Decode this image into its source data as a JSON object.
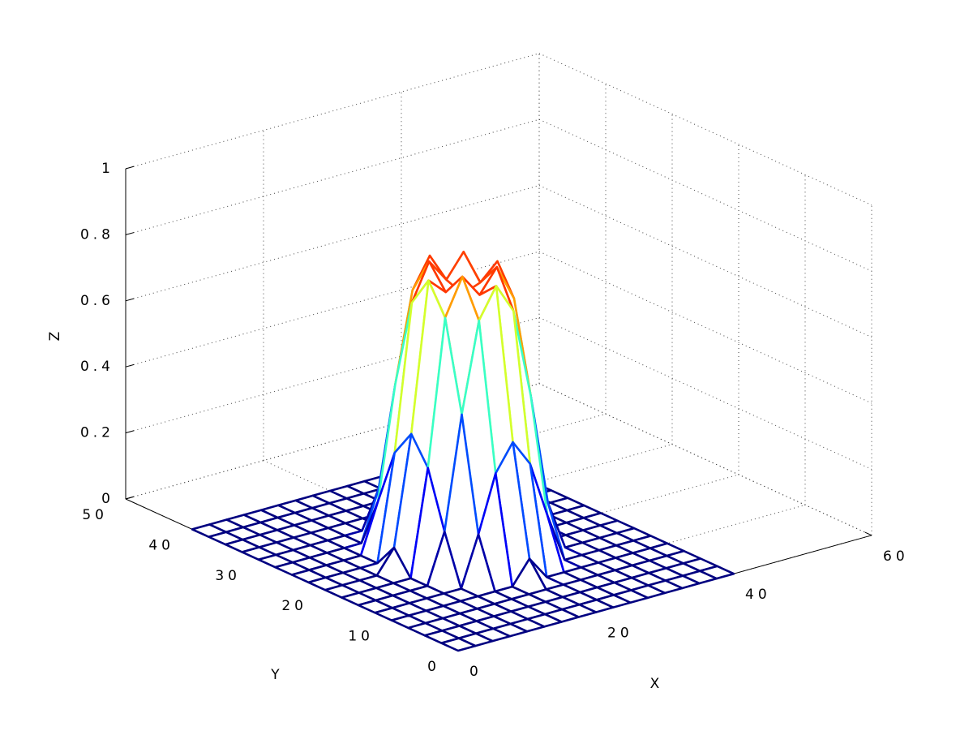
{
  "chart_data": {
    "type": "mesh",
    "xlabel": "X",
    "ylabel": "Y",
    "zlabel": "Z",
    "x": [
      0,
      2.5,
      5,
      7.5,
      10,
      12.5,
      15,
      17.5,
      20,
      22.5,
      25,
      27.5,
      30,
      32.5,
      35,
      37.5,
      40
    ],
    "y": [
      0,
      2.5,
      5,
      7.5,
      10,
      12.5,
      15,
      17.5,
      20,
      22.5,
      25,
      27.5,
      30,
      32.5,
      35,
      37.5,
      40
    ],
    "z": [
      [
        0,
        0,
        0,
        0,
        0,
        0,
        0,
        0,
        0,
        0,
        0,
        0,
        0,
        0,
        0,
        0,
        0
      ],
      [
        0,
        0,
        0,
        0,
        0,
        0,
        0,
        0,
        0,
        0,
        0,
        0,
        0,
        0,
        0,
        0,
        0
      ],
      [
        0,
        0,
        0,
        0,
        0,
        0,
        0,
        0,
        0,
        0,
        0,
        0,
        0,
        0,
        0,
        0,
        0
      ],
      [
        0,
        0,
        0,
        0,
        0,
        0,
        0,
        0,
        0,
        0,
        0,
        0,
        0,
        0,
        0,
        0,
        0
      ],
      [
        0,
        0,
        0,
        0,
        0,
        0,
        0,
        0,
        0.07,
        0,
        0,
        0,
        0,
        0,
        0,
        0,
        0
      ],
      [
        0,
        0,
        0,
        0,
        0,
        0,
        0.15,
        0.32,
        0.4,
        0.32,
        0.15,
        0,
        0,
        0,
        0,
        0,
        0
      ],
      [
        0,
        0,
        0,
        0,
        0,
        0.15,
        0.49,
        0.76,
        0.85,
        0.76,
        0.49,
        0.15,
        0,
        0,
        0,
        0,
        0
      ],
      [
        0,
        0,
        0,
        0,
        0,
        0.32,
        0.76,
        0.87,
        0.8,
        0.87,
        0.76,
        0.32,
        0,
        0,
        0,
        0,
        0
      ],
      [
        0,
        0,
        0,
        0,
        0.07,
        0.4,
        0.85,
        0.8,
        0.78,
        0.8,
        0.85,
        0.4,
        0.07,
        0,
        0,
        0,
        0
      ],
      [
        0,
        0,
        0,
        0,
        0,
        0.32,
        0.76,
        0.87,
        0.8,
        0.87,
        0.76,
        0.32,
        0,
        0,
        0,
        0,
        0
      ],
      [
        0,
        0,
        0,
        0,
        0,
        0.15,
        0.49,
        0.76,
        0.85,
        0.76,
        0.49,
        0.15,
        0,
        0,
        0,
        0,
        0
      ],
      [
        0,
        0,
        0,
        0,
        0,
        0,
        0.15,
        0.32,
        0.4,
        0.32,
        0.15,
        0,
        0,
        0,
        0,
        0,
        0
      ],
      [
        0,
        0,
        0,
        0,
        0,
        0,
        0,
        0,
        0.07,
        0,
        0,
        0,
        0,
        0,
        0,
        0,
        0
      ],
      [
        0,
        0,
        0,
        0,
        0,
        0,
        0,
        0,
        0,
        0,
        0,
        0,
        0,
        0,
        0,
        0,
        0
      ],
      [
        0,
        0,
        0,
        0,
        0,
        0,
        0,
        0,
        0,
        0,
        0,
        0,
        0,
        0,
        0,
        0,
        0
      ],
      [
        0,
        0,
        0,
        0,
        0,
        0,
        0,
        0,
        0,
        0,
        0,
        0,
        0,
        0,
        0,
        0,
        0
      ],
      [
        0,
        0,
        0,
        0,
        0,
        0,
        0,
        0,
        0,
        0,
        0,
        0,
        0,
        0,
        0,
        0,
        0
      ]
    ],
    "xlim": [
      0,
      60
    ],
    "ylim": [
      0,
      50
    ],
    "zlim": [
      0,
      1
    ],
    "xticks": [
      0,
      20,
      40,
      60
    ],
    "yticks": [
      0,
      10,
      20,
      30,
      40,
      50
    ],
    "zticks": [
      0,
      0.2,
      0.4,
      0.6,
      0.8,
      1
    ],
    "grid": true,
    "colormap": "jet"
  }
}
